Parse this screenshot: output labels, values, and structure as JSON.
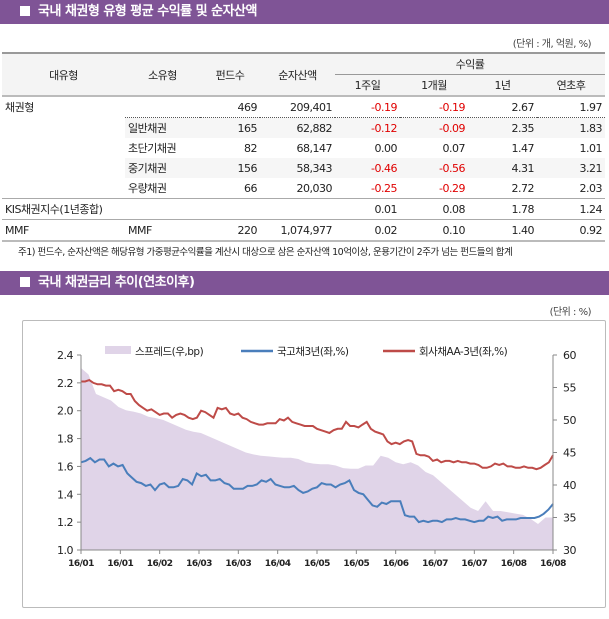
{
  "section1": {
    "title": "국내 채권형 유형 평균 수익률 및 순자산액",
    "unit": "(단위 : 개, 억원, %)"
  },
  "table": {
    "headers": {
      "major": "대유형",
      "minor": "소유형",
      "funds": "펀드수",
      "assets": "순자산액",
      "returns": "수익률",
      "w1": "1주일",
      "m1": "1개월",
      "y1": "1년",
      "ytd": "연초후"
    },
    "rows": [
      {
        "major": "채권형",
        "minor": "",
        "funds": "469",
        "assets": "209,401",
        "w1": "-0.19",
        "m1": "-0.19",
        "y1": "2.67",
        "ytd": "1.97"
      },
      {
        "major": "",
        "minor": "일반채권",
        "funds": "165",
        "assets": "62,882",
        "w1": "-0.12",
        "m1": "-0.09",
        "y1": "2.35",
        "ytd": "1.83"
      },
      {
        "major": "",
        "minor": "초단기채권",
        "funds": "82",
        "assets": "68,147",
        "w1": "0.00",
        "m1": "0.07",
        "y1": "1.47",
        "ytd": "1.01"
      },
      {
        "major": "",
        "minor": "중기채권",
        "funds": "156",
        "assets": "58,343",
        "w1": "-0.46",
        "m1": "-0.56",
        "y1": "4.31",
        "ytd": "3.21"
      },
      {
        "major": "",
        "minor": "우량채권",
        "funds": "66",
        "assets": "20,030",
        "w1": "-0.25",
        "m1": "-0.29",
        "y1": "2.72",
        "ytd": "2.03"
      },
      {
        "major": "KIS채권지수(1년종합)",
        "minor": "",
        "funds": "",
        "assets": "",
        "w1": "0.01",
        "m1": "0.08",
        "y1": "1.78",
        "ytd": "1.24"
      },
      {
        "major": "MMF",
        "minor": "MMF",
        "funds": "220",
        "assets": "1,074,977",
        "w1": "0.02",
        "m1": "0.10",
        "y1": "1.40",
        "ytd": "0.92"
      }
    ],
    "note": "주1) 펀드수, 순자산액은 해당유형 가중평균수익률을 계산시 대상으로 삼은 순자산액 10억이상, 운용기간이 2주가 넘는 펀드들의 합계",
    "negative_color": "#e00000"
  },
  "section2": {
    "title": "국내 채권금리 추이(연초이후)",
    "unit": "(단위 : %)"
  },
  "chart_data": {
    "type": "line",
    "x_ticks": [
      "16/01",
      "16/01",
      "16/02",
      "16/03",
      "16/03",
      "16/04",
      "16/05",
      "16/05",
      "16/06",
      "16/07",
      "16/07",
      "16/08",
      "16/08"
    ],
    "y_left": {
      "range": [
        1.0,
        2.4
      ],
      "ticks": [
        "1.0",
        "1.2",
        "1.4",
        "1.6",
        "1.8",
        "2.0",
        "2.2",
        "2.4"
      ]
    },
    "y_right": {
      "range": [
        30,
        60
      ],
      "ticks": [
        "30",
        "35",
        "40",
        "45",
        "50",
        "55",
        "60"
      ]
    },
    "grid": false,
    "legend": "top",
    "series": [
      {
        "name": "스프레드(우,bp)",
        "type": "area",
        "axis": "right",
        "color": "#e0d4e8",
        "values": [
          58,
          57,
          54,
          53.5,
          53,
          52,
          51.5,
          51.3,
          51,
          50.5,
          50.3,
          50,
          49.5,
          49,
          48.5,
          48.2,
          48,
          47.5,
          47,
          46.5,
          46,
          45.5,
          45,
          44.7,
          44.5,
          44.4,
          44.3,
          44.2,
          44.2,
          44,
          43.5,
          43.3,
          43.2,
          43.2,
          43,
          42.6,
          42.5,
          42.5,
          43,
          43,
          44.5,
          44.2,
          43.5,
          43.2,
          43.5,
          43,
          42,
          41.5,
          40.5,
          39.5,
          38.5,
          37.5,
          36.5,
          36,
          37.5,
          36,
          36,
          35.8,
          35.6,
          35.4,
          34.8,
          34,
          35,
          35
        ]
      },
      {
        "name": "국고채3년(좌,%)",
        "type": "line",
        "axis": "left",
        "color": "#4a7ebb",
        "values": [
          1.63,
          1.64,
          1.66,
          1.63,
          1.65,
          1.65,
          1.6,
          1.62,
          1.6,
          1.61,
          1.55,
          1.52,
          1.49,
          1.48,
          1.46,
          1.47,
          1.43,
          1.47,
          1.48,
          1.45,
          1.45,
          1.46,
          1.51,
          1.5,
          1.47,
          1.55,
          1.53,
          1.54,
          1.5,
          1.5,
          1.51,
          1.48,
          1.47,
          1.44,
          1.44,
          1.44,
          1.46,
          1.46,
          1.47,
          1.5,
          1.49,
          1.51,
          1.47,
          1.46,
          1.45,
          1.45,
          1.46,
          1.43,
          1.41,
          1.42,
          1.44,
          1.45,
          1.48,
          1.47,
          1.47,
          1.45,
          1.47,
          1.48,
          1.5,
          1.43,
          1.41,
          1.4,
          1.36,
          1.32,
          1.31,
          1.34,
          1.33,
          1.35,
          1.35,
          1.35,
          1.25,
          1.24,
          1.24,
          1.2,
          1.21,
          1.2,
          1.21,
          1.21,
          1.2,
          1.22,
          1.22,
          1.23,
          1.22,
          1.22,
          1.21,
          1.2,
          1.21,
          1.21,
          1.24,
          1.23,
          1.24,
          1.21,
          1.22,
          1.22,
          1.22,
          1.23,
          1.23,
          1.23,
          1.23,
          1.24,
          1.26,
          1.29,
          1.33
        ]
      },
      {
        "name": "회사채AA-3년(좌,%)",
        "type": "line",
        "axis": "left",
        "color": "#be4b48",
        "values": [
          2.21,
          2.21,
          2.22,
          2.2,
          2.19,
          2.19,
          2.18,
          2.18,
          2.14,
          2.15,
          2.14,
          2.12,
          2.12,
          2.07,
          2.04,
          2.02,
          2.0,
          2.01,
          1.99,
          1.97,
          1.98,
          1.98,
          1.95,
          1.97,
          1.98,
          1.97,
          1.95,
          1.94,
          1.95,
          2.0,
          1.99,
          1.97,
          1.95,
          2.02,
          2.01,
          2.02,
          1.98,
          1.97,
          1.98,
          1.95,
          1.94,
          1.92,
          1.91,
          1.9,
          1.9,
          1.91,
          1.91,
          1.91,
          1.94,
          1.93,
          1.95,
          1.92,
          1.91,
          1.9,
          1.89,
          1.89,
          1.89,
          1.87,
          1.86,
          1.85,
          1.84,
          1.86,
          1.87,
          1.87,
          1.92,
          1.89,
          1.89,
          1.88,
          1.9,
          1.92,
          1.87,
          1.85,
          1.84,
          1.83,
          1.78,
          1.76,
          1.77,
          1.76,
          1.78,
          1.79,
          1.78,
          1.69,
          1.68,
          1.68,
          1.67,
          1.64,
          1.65,
          1.63,
          1.64,
          1.64,
          1.63,
          1.64,
          1.63,
          1.63,
          1.62,
          1.62,
          1.61,
          1.59,
          1.59,
          1.6,
          1.62,
          1.61,
          1.62,
          1.6,
          1.6,
          1.59,
          1.59,
          1.6,
          1.59,
          1.59,
          1.58,
          1.59,
          1.61,
          1.63,
          1.68
        ]
      }
    ]
  }
}
